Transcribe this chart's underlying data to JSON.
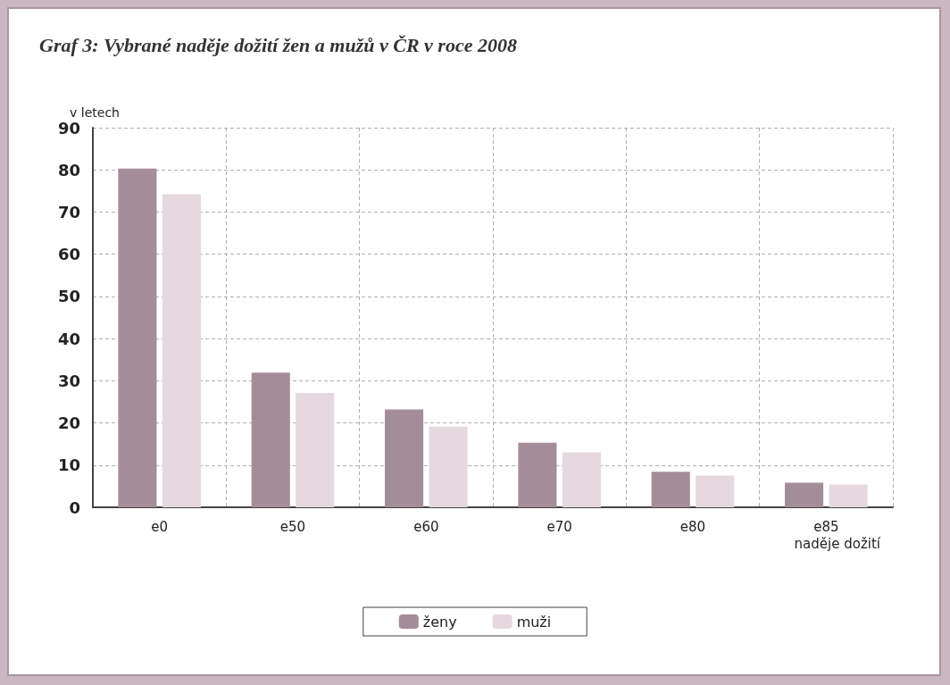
{
  "chart_data": {
    "type": "bar",
    "title": "Graf 3: Vybrané naděje dožití žen a mužů v ČR v roce 2008",
    "ylabel": "v letech",
    "xlabel": "naděje dožití",
    "categories": [
      "e0",
      "e50",
      "e60",
      "e70",
      "e80",
      "e85"
    ],
    "series": [
      {
        "name": "ženy",
        "color": "#a38d99",
        "values": [
          80.3,
          31.9,
          23.2,
          15.3,
          8.4,
          5.8
        ]
      },
      {
        "name": "muži",
        "color": "#e5d9df",
        "values": [
          74.2,
          27.1,
          19.1,
          13.0,
          7.5,
          5.4
        ]
      }
    ],
    "ylim": [
      0,
      90
    ],
    "yticks": [
      0,
      10,
      20,
      30,
      40,
      50,
      60,
      70,
      80,
      90
    ],
    "grid": true,
    "legend": "bottom"
  }
}
